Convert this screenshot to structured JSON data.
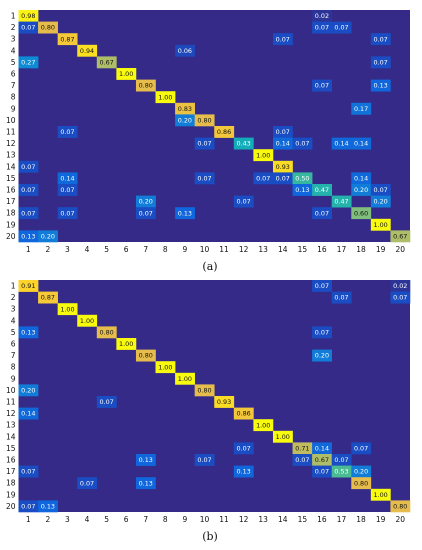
{
  "chart_data": [
    {
      "type": "heatmap",
      "caption": "(a)",
      "x_labels": [
        "1",
        "2",
        "3",
        "4",
        "5",
        "6",
        "7",
        "8",
        "9",
        "10",
        "11",
        "12",
        "13",
        "14",
        "15",
        "16",
        "17",
        "18",
        "19",
        "20"
      ],
      "y_labels": [
        "1",
        "2",
        "3",
        "4",
        "5",
        "6",
        "7",
        "8",
        "9",
        "10",
        "11",
        "12",
        "13",
        "14",
        "15",
        "16",
        "17",
        "18",
        "19",
        "20"
      ],
      "color_range": [
        0,
        1
      ],
      "matrix": [
        [
          0.98,
          0,
          0,
          0,
          0,
          0,
          0,
          0,
          0,
          0,
          0,
          0,
          0,
          0,
          0,
          0.02,
          0,
          0,
          0,
          0
        ],
        [
          0.07,
          0.8,
          0,
          0,
          0,
          0,
          0,
          0,
          0,
          0,
          0,
          0,
          0,
          0,
          0,
          0.07,
          0.07,
          0,
          0,
          0
        ],
        [
          0,
          0,
          0.87,
          0,
          0,
          0,
          0,
          0,
          0,
          0,
          0,
          0,
          0,
          0.07,
          0,
          0,
          0,
          0,
          0.07,
          0
        ],
        [
          0,
          0,
          0,
          0.94,
          0,
          0,
          0,
          0,
          0.06,
          0,
          0,
          0,
          0,
          0,
          0,
          0,
          0,
          0,
          0,
          0
        ],
        [
          0.27,
          0,
          0,
          0,
          0.67,
          0,
          0,
          0,
          0,
          0,
          0,
          0,
          0,
          0,
          0,
          0,
          0,
          0,
          0.07,
          0
        ],
        [
          0,
          0,
          0,
          0,
          0,
          1.0,
          0,
          0,
          0,
          0,
          0,
          0,
          0,
          0,
          0,
          0,
          0,
          0,
          0,
          0
        ],
        [
          0,
          0,
          0,
          0,
          0,
          0,
          0.8,
          0,
          0,
          0,
          0,
          0,
          0,
          0,
          0,
          0.07,
          0,
          0,
          0.13,
          0
        ],
        [
          0,
          0,
          0,
          0,
          0,
          0,
          0,
          1.0,
          0,
          0,
          0,
          0,
          0,
          0,
          0,
          0,
          0,
          0,
          0,
          0
        ],
        [
          0,
          0,
          0,
          0,
          0,
          0,
          0,
          0,
          0.83,
          0,
          0,
          0,
          0,
          0,
          0,
          0,
          0,
          0.17,
          0,
          0
        ],
        [
          0,
          0,
          0,
          0,
          0,
          0,
          0,
          0,
          0.2,
          0.8,
          0,
          0,
          0,
          0,
          0,
          0,
          0,
          0,
          0,
          0
        ],
        [
          0,
          0,
          0.07,
          0,
          0,
          0,
          0,
          0,
          0,
          0,
          0.86,
          0,
          0,
          0.07,
          0,
          0,
          0,
          0,
          0,
          0
        ],
        [
          0,
          0,
          0,
          0,
          0,
          0,
          0,
          0,
          0,
          0.07,
          0,
          0.43,
          0,
          0.14,
          0.07,
          0,
          0.14,
          0.14,
          0,
          0
        ],
        [
          0,
          0,
          0,
          0,
          0,
          0,
          0,
          0,
          0,
          0,
          0,
          0,
          1.0,
          0,
          0,
          0,
          0,
          0,
          0,
          0
        ],
        [
          0.07,
          0,
          0,
          0,
          0,
          0,
          0,
          0,
          0,
          0,
          0,
          0,
          0,
          0.93,
          0,
          0,
          0,
          0,
          0,
          0
        ],
        [
          0,
          0,
          0.14,
          0,
          0,
          0,
          0,
          0,
          0,
          0.07,
          0,
          0,
          0.07,
          0.07,
          0.5,
          0,
          0,
          0.14,
          0,
          0
        ],
        [
          0.07,
          0,
          0.07,
          0,
          0,
          0,
          0,
          0,
          0,
          0,
          0,
          0,
          0,
          0,
          0.13,
          0.47,
          0,
          0.2,
          0.07,
          0
        ],
        [
          0,
          0,
          0,
          0,
          0,
          0,
          0.2,
          0,
          0,
          0,
          0,
          0.07,
          0,
          0,
          0,
          0,
          0.47,
          0,
          0.2,
          0
        ],
        [
          0.07,
          0,
          0.07,
          0,
          0,
          0,
          0.07,
          0,
          0.13,
          0,
          0,
          0,
          0,
          0,
          0,
          0.07,
          0,
          0.6,
          0,
          0
        ],
        [
          0,
          0,
          0,
          0,
          0,
          0,
          0,
          0,
          0,
          0,
          0,
          0,
          0,
          0,
          0,
          0,
          0,
          0,
          1.0,
          0
        ],
        [
          0.13,
          0.2,
          0,
          0,
          0,
          0,
          0,
          0,
          0,
          0,
          0,
          0,
          0,
          0,
          0,
          0,
          0,
          0,
          0,
          0.67
        ]
      ]
    },
    {
      "type": "heatmap",
      "caption": "(b)",
      "x_labels": [
        "1",
        "2",
        "3",
        "4",
        "5",
        "6",
        "7",
        "8",
        "9",
        "10",
        "11",
        "12",
        "13",
        "14",
        "15",
        "16",
        "17",
        "18",
        "19",
        "20"
      ],
      "y_labels": [
        "1",
        "2",
        "3",
        "4",
        "5",
        "6",
        "7",
        "8",
        "9",
        "10",
        "11",
        "12",
        "13",
        "14",
        "15",
        "16",
        "17",
        "18",
        "19",
        "20"
      ],
      "color_range": [
        0,
        1
      ],
      "matrix": [
        [
          0.91,
          0,
          0,
          0,
          0,
          0,
          0,
          0,
          0,
          0,
          0,
          0,
          0,
          0,
          0,
          0.07,
          0,
          0,
          0,
          0.02
        ],
        [
          0,
          0.87,
          0,
          0,
          0,
          0,
          0,
          0,
          0,
          0,
          0,
          0,
          0,
          0,
          0,
          0,
          0.07,
          0,
          0,
          0.07
        ],
        [
          0,
          0,
          1.0,
          0,
          0,
          0,
          0,
          0,
          0,
          0,
          0,
          0,
          0,
          0,
          0,
          0,
          0,
          0,
          0,
          0
        ],
        [
          0,
          0,
          0,
          1.0,
          0,
          0,
          0,
          0,
          0,
          0,
          0,
          0,
          0,
          0,
          0,
          0,
          0,
          0,
          0,
          0
        ],
        [
          0.13,
          0,
          0,
          0,
          0.8,
          0,
          0,
          0,
          0,
          0,
          0,
          0,
          0,
          0,
          0,
          0.07,
          0,
          0,
          0,
          0
        ],
        [
          0,
          0,
          0,
          0,
          0,
          1.0,
          0,
          0,
          0,
          0,
          0,
          0,
          0,
          0,
          0,
          0,
          0,
          0,
          0,
          0
        ],
        [
          0,
          0,
          0,
          0,
          0,
          0,
          0.8,
          0,
          0,
          0,
          0,
          0,
          0,
          0,
          0,
          0.2,
          0,
          0,
          0,
          0
        ],
        [
          0,
          0,
          0,
          0,
          0,
          0,
          0,
          1.0,
          0,
          0,
          0,
          0,
          0,
          0,
          0,
          0,
          0,
          0,
          0,
          0
        ],
        [
          0,
          0,
          0,
          0,
          0,
          0,
          0,
          0,
          1.0,
          0,
          0,
          0,
          0,
          0,
          0,
          0,
          0,
          0,
          0,
          0
        ],
        [
          0.2,
          0,
          0,
          0,
          0,
          0,
          0,
          0,
          0,
          0.8,
          0,
          0,
          0,
          0,
          0,
          0,
          0,
          0,
          0,
          0
        ],
        [
          0,
          0,
          0,
          0,
          0.07,
          0,
          0,
          0,
          0,
          0,
          0.93,
          0,
          0,
          0,
          0,
          0,
          0,
          0,
          0,
          0
        ],
        [
          0.14,
          0,
          0,
          0,
          0,
          0,
          0,
          0,
          0,
          0,
          0,
          0.86,
          0,
          0,
          0,
          0,
          0,
          0,
          0,
          0
        ],
        [
          0,
          0,
          0,
          0,
          0,
          0,
          0,
          0,
          0,
          0,
          0,
          0,
          1.0,
          0,
          0,
          0,
          0,
          0,
          0,
          0
        ],
        [
          0,
          0,
          0,
          0,
          0,
          0,
          0,
          0,
          0,
          0,
          0,
          0,
          0,
          1.0,
          0,
          0,
          0,
          0,
          0,
          0
        ],
        [
          0,
          0,
          0,
          0,
          0,
          0,
          0,
          0,
          0,
          0,
          0,
          0.07,
          0,
          0,
          0.71,
          0.14,
          0,
          0.07,
          0,
          0
        ],
        [
          0,
          0,
          0,
          0,
          0,
          0,
          0.13,
          0,
          0,
          0.07,
          0,
          0,
          0,
          0,
          0.07,
          0.67,
          0.07,
          0,
          0,
          0
        ],
        [
          0.07,
          0,
          0,
          0,
          0,
          0,
          0,
          0,
          0,
          0,
          0,
          0.13,
          0,
          0,
          0,
          0.07,
          0.53,
          0.2,
          0,
          0
        ],
        [
          0,
          0,
          0,
          0.07,
          0,
          0,
          0.13,
          0,
          0,
          0,
          0,
          0,
          0,
          0,
          0,
          0,
          0,
          0.8,
          0,
          0
        ],
        [
          0,
          0,
          0,
          0,
          0,
          0,
          0,
          0,
          0,
          0,
          0,
          0,
          0,
          0,
          0,
          0,
          0,
          0,
          1.0,
          0
        ],
        [
          0.07,
          0.13,
          0,
          0,
          0,
          0,
          0,
          0,
          0,
          0,
          0,
          0,
          0,
          0,
          0,
          0,
          0,
          0,
          0,
          0.8
        ]
      ]
    }
  ]
}
